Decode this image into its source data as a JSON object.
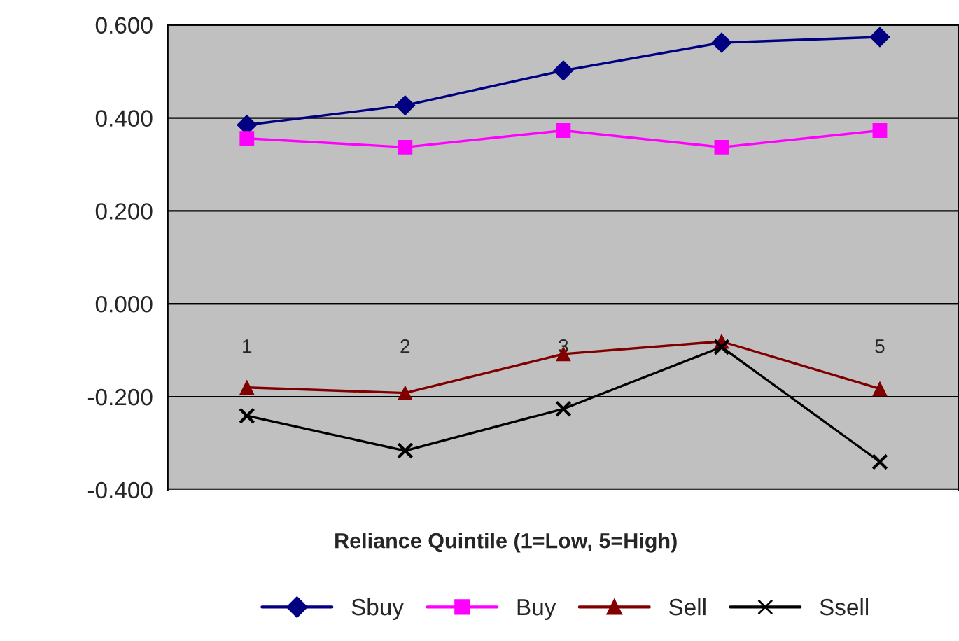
{
  "chart_data": {
    "type": "line",
    "xlabel": "Reliance Quintile (1=Low, 5=High)",
    "categories": [
      "1",
      "2",
      "3",
      null,
      "5"
    ],
    "ylim": [
      -0.4,
      0.6
    ],
    "yticks": [
      {
        "value": -0.4,
        "label": "-0.400"
      },
      {
        "value": -0.2,
        "label": "-0.200"
      },
      {
        "value": 0,
        "label": "0.000"
      },
      {
        "value": 0.2,
        "label": "0.200"
      },
      {
        "value": 0.4,
        "label": "0.400"
      },
      {
        "value": 0.6,
        "label": "0.600"
      }
    ],
    "grid": "y",
    "legend": "bottom",
    "line_style": "solid",
    "series": [
      {
        "name": "Sbuy",
        "color": "#000080",
        "marker": "diamond",
        "values": [
          0.385,
          0.427,
          0.502,
          0.562,
          0.574
        ]
      },
      {
        "name": "Buy",
        "color": "#ff00ff",
        "marker": "square",
        "values": [
          0.356,
          0.337,
          0.373,
          0.337,
          0.373
        ]
      },
      {
        "name": "Sell",
        "color": "#800000",
        "marker": "triangle",
        "values": [
          -0.18,
          -0.192,
          -0.108,
          -0.081,
          -0.183
        ]
      },
      {
        "name": "Ssell",
        "color": "#000000",
        "marker": "cross",
        "values": [
          -0.241,
          -0.316,
          -0.226,
          -0.093,
          -0.34
        ]
      }
    ]
  }
}
